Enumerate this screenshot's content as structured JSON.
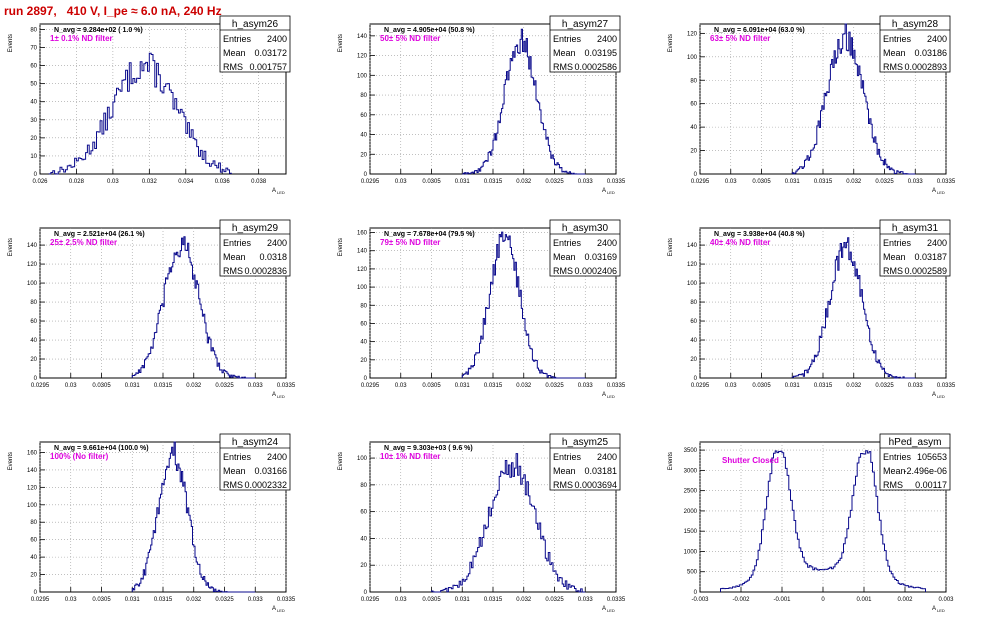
{
  "title": "run 2897,   410 V, I_pe ≈ 6.0 nA, 240 Hz",
  "colors": {
    "hist": "#0a0a8c",
    "annotation": "#dd00dd",
    "title": "#cc0000",
    "grid": "#9a9a9a"
  },
  "stat_labels": [
    "Entries",
    "Mean",
    "RMS"
  ],
  "ylabel": "Events",
  "xlabel": "A_LED",
  "chart_data": [
    {
      "type": "histogram",
      "name": "h_asym26",
      "caption": "N_avg = 9.284e+02 ( 1.0 %)",
      "annotation": "1± 0.1% ND filter",
      "entries": "2400",
      "mean": "0.03172",
      "rms": "0.001757",
      "xlim": [
        0.026,
        0.0395
      ],
      "xticks": [
        0.026,
        0.028,
        0.03,
        0.032,
        0.034,
        0.036,
        0.038
      ],
      "xtick_labels": [
        "0.026",
        "0.028",
        "0.03",
        "0.032",
        "0.034",
        "0.036",
        "0.038"
      ],
      "ylim": [
        0,
        83
      ],
      "yticks": [
        0,
        10,
        20,
        30,
        40,
        50,
        60,
        70,
        80
      ],
      "distribution": {
        "center": 0.03172,
        "sigma": 0.001757,
        "peak": 60,
        "bins": 100,
        "range": [
          0.0265,
          0.0365
        ]
      }
    },
    {
      "type": "histogram",
      "name": "h_asym27",
      "caption": "N_avg = 4.905e+04 (50.8 %)",
      "annotation": "50± 5% ND filter",
      "entries": "2400",
      "mean": "0.03195",
      "rms": "0.0002586",
      "xlim": [
        0.0295,
        0.0335
      ],
      "xticks": [
        0.0295,
        0.03,
        0.0305,
        0.031,
        0.0315,
        0.032,
        0.0325,
        0.033,
        0.0335
      ],
      "xtick_labels": [
        "0.0295",
        "0.03",
        "0.0305",
        "0.031",
        "0.0315",
        "0.032",
        "0.0325",
        "0.033",
        "0.0335"
      ],
      "ylim": [
        0,
        152
      ],
      "yticks": [
        0,
        20,
        40,
        60,
        80,
        100,
        120,
        140
      ],
      "distribution": {
        "center": 0.03195,
        "sigma": 0.0002586,
        "peak": 135,
        "bins": 100,
        "range": [
          0.031,
          0.033
        ]
      }
    },
    {
      "type": "histogram",
      "name": "h_asym28",
      "caption": "N_avg = 6.091e+04 (63.0 %)",
      "annotation": "63± 5% ND filter",
      "entries": "2400",
      "mean": "0.03186",
      "rms": "0.0002893",
      "xlim": [
        0.0295,
        0.0335
      ],
      "xticks": [
        0.0295,
        0.03,
        0.0305,
        0.031,
        0.0315,
        0.032,
        0.0325,
        0.033,
        0.0335
      ],
      "xtick_labels": [
        "0.0295",
        "0.03",
        "0.0305",
        "0.031",
        "0.0315",
        "0.032",
        "0.0325",
        "0.033",
        "0.0335"
      ],
      "ylim": [
        0,
        128
      ],
      "yticks": [
        0,
        20,
        40,
        60,
        80,
        100,
        120
      ],
      "distribution": {
        "center": 0.03186,
        "sigma": 0.0002893,
        "peak": 118,
        "bins": 100,
        "range": [
          0.031,
          0.033
        ]
      }
    },
    {
      "type": "histogram",
      "name": "h_asym29",
      "caption": "N_avg = 2.521e+04 (26.1 %)",
      "annotation": "25± 2.5% ND filter",
      "entries": "2400",
      "mean": "0.0318",
      "rms": "0.0002836",
      "xlim": [
        0.0295,
        0.0335
      ],
      "xticks": [
        0.0295,
        0.03,
        0.0305,
        0.031,
        0.0315,
        0.032,
        0.0325,
        0.033,
        0.0335
      ],
      "xtick_labels": [
        "0.0295",
        "0.03",
        "0.0305",
        "0.031",
        "0.0315",
        "0.032",
        "0.0325",
        "0.033",
        "0.0335"
      ],
      "ylim": [
        0,
        158
      ],
      "yticks": [
        0,
        20,
        40,
        60,
        80,
        100,
        120,
        140
      ],
      "distribution": {
        "center": 0.0318,
        "sigma": 0.0002836,
        "peak": 140,
        "bins": 100,
        "range": [
          0.031,
          0.033
        ]
      }
    },
    {
      "type": "histogram",
      "name": "h_asym30",
      "caption": "N_avg = 7.678e+04 (79.5 %)",
      "annotation": "79± 5% ND filter",
      "entries": "2400",
      "mean": "0.03169",
      "rms": "0.0002406",
      "xlim": [
        0.0295,
        0.0335
      ],
      "xticks": [
        0.0295,
        0.03,
        0.0305,
        0.031,
        0.0315,
        0.032,
        0.0325,
        0.033,
        0.0335
      ],
      "xtick_labels": [
        "0.0295",
        "0.03",
        "0.0305",
        "0.031",
        "0.0315",
        "0.032",
        "0.0325",
        "0.033",
        "0.0335"
      ],
      "ylim": [
        0,
        165
      ],
      "yticks": [
        0,
        20,
        40,
        60,
        80,
        100,
        120,
        140,
        160
      ],
      "distribution": {
        "center": 0.03169,
        "sigma": 0.0002406,
        "peak": 155,
        "bins": 100,
        "range": [
          0.031,
          0.033
        ]
      }
    },
    {
      "type": "histogram",
      "name": "h_asym31",
      "caption": "N_avg = 3.938e+04 (40.8 %)",
      "annotation": "40± 4% ND filter",
      "entries": "2400",
      "mean": "0.03187",
      "rms": "0.0002589",
      "xlim": [
        0.0295,
        0.0335
      ],
      "xticks": [
        0.0295,
        0.03,
        0.0305,
        0.031,
        0.0315,
        0.032,
        0.0325,
        0.033,
        0.0335
      ],
      "xtick_labels": [
        "0.0295",
        "0.03",
        "0.0305",
        "0.031",
        "0.0315",
        "0.032",
        "0.0325",
        "0.033",
        "0.0335"
      ],
      "ylim": [
        0,
        158
      ],
      "yticks": [
        0,
        20,
        40,
        60,
        80,
        100,
        120,
        140
      ],
      "distribution": {
        "center": 0.03187,
        "sigma": 0.0002589,
        "peak": 140,
        "bins": 100,
        "range": [
          0.031,
          0.033
        ]
      }
    },
    {
      "type": "histogram",
      "name": "h_asym24",
      "caption": "N_avg = 9.661e+04 (100.0 %)",
      "annotation": "100% (No filter)",
      "entries": "2400",
      "mean": "0.03166",
      "rms": "0.0002332",
      "xlim": [
        0.0295,
        0.0335
      ],
      "xticks": [
        0.0295,
        0.03,
        0.0305,
        0.031,
        0.0315,
        0.032,
        0.0325,
        0.033,
        0.0335
      ],
      "xtick_labels": [
        "0.0295",
        "0.03",
        "0.0305",
        "0.031",
        "0.0315",
        "0.032",
        "0.0325",
        "0.033",
        "0.0335"
      ],
      "ylim": [
        0,
        172
      ],
      "yticks": [
        0,
        20,
        40,
        60,
        80,
        100,
        120,
        140,
        160
      ],
      "distribution": {
        "center": 0.03166,
        "sigma": 0.0002332,
        "peak": 160,
        "bins": 100,
        "range": [
          0.031,
          0.033
        ]
      }
    },
    {
      "type": "histogram",
      "name": "h_asym25",
      "caption": "N_avg = 9.303e+03 ( 9.6 %)",
      "annotation": "10± 1% ND filter",
      "entries": "2400",
      "mean": "0.03181",
      "rms": "0.0003694",
      "xlim": [
        0.0295,
        0.0335
      ],
      "xticks": [
        0.0295,
        0.03,
        0.0305,
        0.031,
        0.0315,
        0.032,
        0.0325,
        0.033,
        0.0335
      ],
      "xtick_labels": [
        "0.0295",
        "0.03",
        "0.0305",
        "0.031",
        "0.0315",
        "0.032",
        "0.0325",
        "0.033",
        "0.0335"
      ],
      "ylim": [
        0,
        112
      ],
      "yticks": [
        0,
        20,
        40,
        60,
        80,
        100
      ],
      "distribution": {
        "center": 0.03181,
        "sigma": 0.0003694,
        "peak": 95,
        "bins": 100,
        "range": [
          0.0305,
          0.033
        ]
      }
    },
    {
      "type": "histogram",
      "name": "hPed_asym",
      "caption": "",
      "annotation": "Shutter Closed",
      "entries": "105653",
      "mean": "-2.496e-06",
      "rms": "0.00117",
      "xlim": [
        -0.003,
        0.003
      ],
      "xticks": [
        -0.003,
        -0.002,
        -0.001,
        0,
        0.001,
        0.002,
        0.003
      ],
      "xtick_labels": [
        "-0.003",
        "-0.002",
        "-0.001",
        "0",
        "0.001",
        "0.002",
        "0.003"
      ],
      "ylim": [
        0,
        3700
      ],
      "yticks": [
        0,
        500,
        1000,
        1500,
        2000,
        2500,
        3000,
        3500
      ],
      "distribution": {
        "type": "pedestal",
        "peak": 3450,
        "bins": 120,
        "range": [
          -0.0025,
          0.0025
        ]
      }
    }
  ]
}
